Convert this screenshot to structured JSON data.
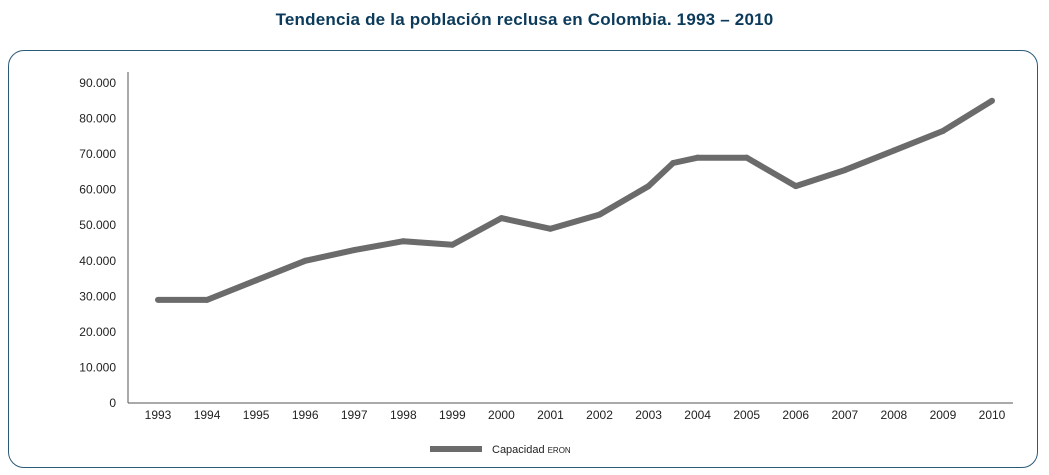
{
  "chart_data": {
    "type": "line",
    "title": "Tendencia de la población reclusa en Colombia. 1993 – 2010",
    "xlabel": "",
    "ylabel": "",
    "categories": [
      "1993",
      "1994",
      "1995",
      "1996",
      "1997",
      "1998",
      "1999",
      "2000",
      "2001",
      "2002",
      "2003",
      "2004",
      "2005",
      "2006",
      "2007",
      "2008",
      "2009",
      "2010"
    ],
    "ylim": [
      0,
      90000
    ],
    "yticks": [
      "0",
      "10.000",
      "20.000",
      "30.000",
      "40.000",
      "50.000",
      "60.000",
      "70.000",
      "80.000",
      "90.000"
    ],
    "grid": false,
    "legend": "bottom",
    "color": "#6b6b6b",
    "series": [
      {
        "name": "Capacidad",
        "name_suffix": "ERON",
        "points": [
          {
            "x": 1993,
            "y": 29000
          },
          {
            "x": 1994,
            "y": 29000
          },
          {
            "x": 1995,
            "y": 34500
          },
          {
            "x": 1996,
            "y": 40000
          },
          {
            "x": 1997,
            "y": 43000
          },
          {
            "x": 1998,
            "y": 45500
          },
          {
            "x": 1999,
            "y": 44500
          },
          {
            "x": 2000,
            "y": 52000
          },
          {
            "x": 2001,
            "y": 49000
          },
          {
            "x": 2002,
            "y": 53000
          },
          {
            "x": 2003,
            "y": 61000
          },
          {
            "x": 2003.5,
            "y": 67500
          },
          {
            "x": 2004,
            "y": 69000
          },
          {
            "x": 2005,
            "y": 69000
          },
          {
            "x": 2006,
            "y": 61000
          },
          {
            "x": 2007,
            "y": 65500
          },
          {
            "x": 2008,
            "y": 71000
          },
          {
            "x": 2009,
            "y": 76500
          },
          {
            "x": 2010,
            "y": 85000
          }
        ]
      }
    ]
  }
}
